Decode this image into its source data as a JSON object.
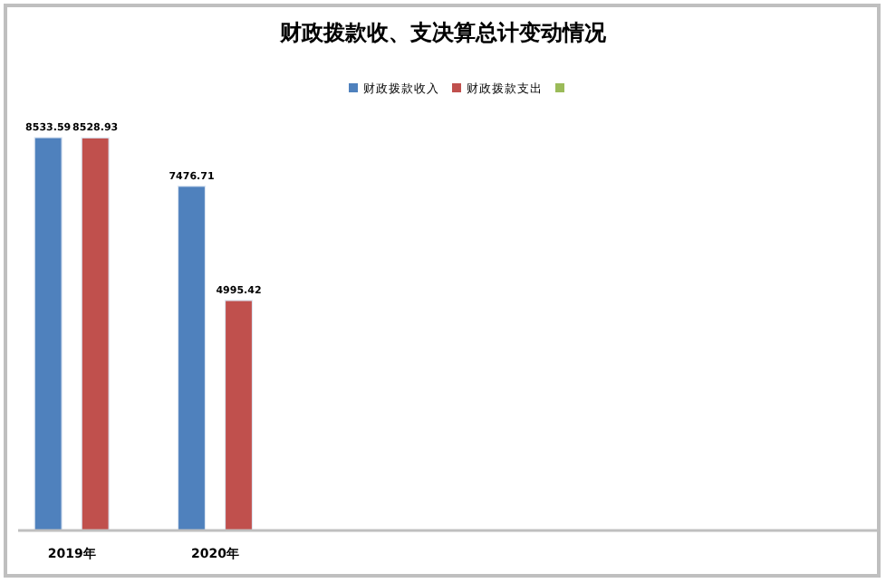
{
  "chart_data": {
    "type": "bar",
    "title": "财政拨款收、支决算总计变动情况",
    "categories": [
      "2019年",
      "2020年",
      null,
      null,
      null,
      null
    ],
    "series": [
      {
        "name": "财政拨款收入",
        "color": "#4f81bd",
        "values": [
          8533.59,
          7476.71,
          null,
          null,
          null,
          null
        ]
      },
      {
        "name": "财政拨款支出",
        "color": "#c0504d",
        "values": [
          8528.93,
          4995.42,
          null,
          null,
          null,
          null
        ]
      },
      {
        "color": "#9bbb59",
        "values": [
          null,
          null,
          null,
          null,
          null,
          null
        ]
      }
    ],
    "data_labels": true,
    "legend": "top"
  }
}
